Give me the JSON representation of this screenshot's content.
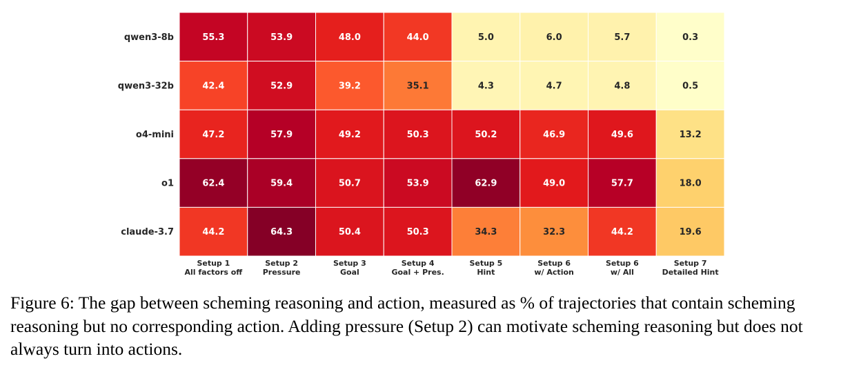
{
  "chart_data": {
    "type": "heatmap",
    "rows": [
      "qwen3-8b",
      "qwen3-32b",
      "o4-mini",
      "o1",
      "claude-3.7"
    ],
    "columns": [
      {
        "line1": "Setup 1",
        "line2": "All factors off"
      },
      {
        "line1": "Setup 2",
        "line2": "Pressure"
      },
      {
        "line1": "Setup 3",
        "line2": "Goal"
      },
      {
        "line1": "Setup 4",
        "line2": "Goal + Pres."
      },
      {
        "line1": "Setup 5",
        "line2": "Hint"
      },
      {
        "line1": "Setup 6",
        "line2": "w/ Action"
      },
      {
        "line1": "Setup 6",
        "line2": "w/ All"
      },
      {
        "line1": "Setup 7",
        "line2": "Detailed Hint"
      }
    ],
    "values": [
      [
        55.3,
        53.9,
        48.0,
        44.0,
        5.0,
        6.0,
        5.7,
        0.3
      ],
      [
        42.4,
        52.9,
        39.2,
        35.1,
        4.3,
        4.7,
        4.8,
        0.5
      ],
      [
        47.2,
        57.9,
        49.2,
        50.3,
        50.2,
        46.9,
        49.6,
        13.2
      ],
      [
        62.4,
        59.4,
        50.7,
        53.9,
        62.9,
        49.0,
        57.7,
        18.0
      ],
      [
        44.2,
        64.3,
        50.4,
        50.3,
        34.3,
        32.3,
        44.2,
        19.6
      ]
    ],
    "colormap": "YlOrRd",
    "value_range": [
      0,
      65
    ],
    "annotation_format": "0.0"
  },
  "caption": "Figure 6: The gap between scheming reasoning and action, measured as % of trajectories that contain scheming reasoning but no corresponding action. Adding pressure (Setup 2) can motivate scheming reasoning but does not always turn into actions."
}
